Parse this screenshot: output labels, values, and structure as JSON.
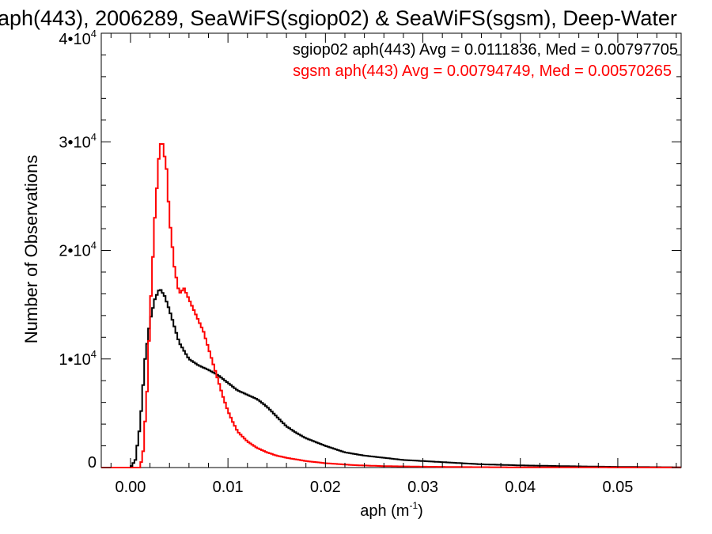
{
  "chart_data": {
    "type": "line",
    "title": "aph(443), 2006289, SeaWiFS(sgiop02) & SeaWiFS(sgsm), Deep-Water",
    "xlabel_main": "aph (m",
    "xlabel_sup": "-1",
    "xlabel_close": ")",
    "ylabel": "Number of Observations",
    "xlim": [
      -0.003,
      0.0565
    ],
    "ylim": [
      0,
      40000
    ],
    "xticks": [
      0.0,
      0.01,
      0.02,
      0.03,
      0.04,
      0.05
    ],
    "xtick_labels": [
      "0.00",
      "0.01",
      "0.02",
      "0.03",
      "0.04",
      "0.05"
    ],
    "yticks": [
      {
        "value": 0,
        "base": "0",
        "exp": ""
      },
      {
        "value": 10000,
        "base": "1•10",
        "exp": "4"
      },
      {
        "value": 20000,
        "base": "2•10",
        "exp": "4"
      },
      {
        "value": 30000,
        "base": "3•10",
        "exp": "4"
      },
      {
        "value": 40000,
        "base": "4•10",
        "exp": "4"
      }
    ],
    "grid": false,
    "legend_position": "top-right",
    "series": [
      {
        "name": "sgiop02 aph(443)",
        "annotation": "sgiop02 aph(443) Avg = 0.0111836, Med = 0.00797705",
        "color": "#000000",
        "x": [
          0.0,
          0.0005,
          0.001,
          0.0015,
          0.002,
          0.0025,
          0.003,
          0.0035,
          0.004,
          0.005,
          0.006,
          0.007,
          0.008,
          0.009,
          0.01,
          0.011,
          0.012,
          0.013,
          0.014,
          0.015,
          0.016,
          0.017,
          0.018,
          0.02,
          0.022,
          0.024,
          0.026,
          0.028,
          0.03,
          0.033,
          0.036,
          0.04,
          0.045,
          0.05,
          0.0565
        ],
        "y": [
          0,
          700,
          4000,
          10000,
          13500,
          15500,
          16500,
          15800,
          14500,
          11500,
          10000,
          9400,
          9000,
          8500,
          7800,
          7100,
          6700,
          6300,
          5600,
          4700,
          3800,
          3200,
          2700,
          2000,
          1400,
          1100,
          900,
          700,
          600,
          450,
          300,
          200,
          120,
          60,
          20
        ]
      },
      {
        "name": "sgsm aph(443)",
        "annotation": "sgsm aph(443) Avg = 0.00794749, Med = 0.00570265",
        "color": "#ff0000",
        "x": [
          0.0,
          0.001,
          0.0013,
          0.0017,
          0.002,
          0.0025,
          0.003,
          0.0033,
          0.0037,
          0.004,
          0.0045,
          0.005,
          0.0055,
          0.006,
          0.0065,
          0.007,
          0.0075,
          0.008,
          0.0085,
          0.009,
          0.0095,
          0.01,
          0.0105,
          0.011,
          0.012,
          0.013,
          0.014,
          0.015,
          0.016,
          0.018,
          0.02,
          0.023,
          0.026,
          0.03,
          0.035,
          0.04,
          0.05,
          0.0565
        ],
        "y": [
          0,
          0,
          1500,
          7000,
          14000,
          23000,
          29800,
          29800,
          27500,
          23000,
          18500,
          16000,
          16500,
          15500,
          14500,
          13500,
          12500,
          11000,
          9500,
          8000,
          6500,
          5200,
          4200,
          3300,
          2400,
          1800,
          1400,
          1100,
          900,
          600,
          400,
          220,
          130,
          80,
          40,
          20,
          10,
          5
        ]
      }
    ]
  }
}
